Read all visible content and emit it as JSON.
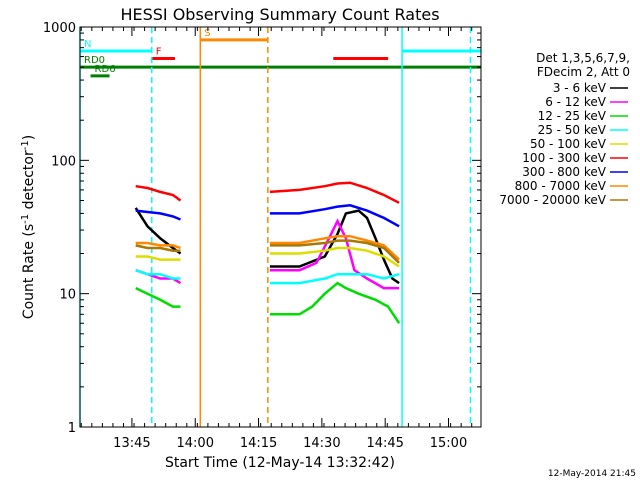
{
  "chart_data": {
    "type": "line",
    "title": "HESSI Observing Summary Count Rates",
    "xlabel": "Start Time (12-May-14 13:32:42)",
    "ylabel_main": "Count Rate (s",
    "ylabel_sup1": "-1",
    "ylabel_mid": " detector",
    "ylabel_sup2": "-1",
    "ylabel_end": ")",
    "y_scale": "log",
    "ylim": [
      1,
      1000
    ],
    "xlim_minutes": [
      0,
      95
    ],
    "x_ticks": [
      {
        "label": "13:45",
        "min": 12.3
      },
      {
        "label": "14:00",
        "min": 27.3
      },
      {
        "label": "14:15",
        "min": 42.3
      },
      {
        "label": "14:30",
        "min": 57.3
      },
      {
        "label": "14:45",
        "min": 72.3
      },
      {
        "label": "15:00",
        "min": 87.3
      }
    ],
    "y_ticks": [
      {
        "label": "1",
        "value": 1
      },
      {
        "label": "10",
        "value": 10
      },
      {
        "label": "100",
        "value": 100
      },
      {
        "label": "1000",
        "value": 1000
      }
    ],
    "legend_header": [
      "Det 1,3,5,6,7,9,",
      "FDecim 2, Att 0"
    ],
    "legend_placement": "right",
    "footer_date": "12-May-2014 21:45",
    "series": [
      {
        "name": "3 - 6 keV",
        "color": "#000000",
        "points": [
          [
            13.2,
            44
          ],
          [
            16,
            32
          ],
          [
            19,
            26
          ],
          [
            22,
            22
          ],
          [
            23.8,
            20
          ],
          [
            45,
            16
          ],
          [
            52,
            16
          ],
          [
            58,
            19
          ],
          [
            61,
            28
          ],
          [
            63,
            40
          ],
          [
            66,
            42
          ],
          [
            68,
            37
          ],
          [
            70,
            26
          ],
          [
            72,
            18
          ],
          [
            74,
            13
          ],
          [
            75.6,
            12
          ]
        ]
      },
      {
        "name": "6 - 12 keV",
        "color": "#ff00ff",
        "points": [
          [
            13.2,
            15
          ],
          [
            16,
            14
          ],
          [
            19,
            13
          ],
          [
            22,
            13
          ],
          [
            23.8,
            12
          ],
          [
            45,
            15
          ],
          [
            52,
            15
          ],
          [
            56,
            17
          ],
          [
            59,
            26
          ],
          [
            61,
            35
          ],
          [
            63,
            26
          ],
          [
            65,
            15
          ],
          [
            68,
            13
          ],
          [
            72,
            11
          ],
          [
            75.6,
            11
          ]
        ]
      },
      {
        "name": "12 - 25 keV",
        "color": "#00dd00",
        "points": [
          [
            13.2,
            11
          ],
          [
            16,
            10
          ],
          [
            19,
            9
          ],
          [
            22,
            8
          ],
          [
            23.8,
            8
          ],
          [
            45,
            7
          ],
          [
            52,
            7
          ],
          [
            55,
            8
          ],
          [
            58,
            10
          ],
          [
            61,
            12
          ],
          [
            63,
            11
          ],
          [
            66,
            10
          ],
          [
            70,
            9
          ],
          [
            73,
            8
          ],
          [
            75.6,
            6
          ]
        ]
      },
      {
        "name": "25 - 50 keV",
        "color": "#00ffff",
        "points": [
          [
            13.2,
            15
          ],
          [
            16,
            14
          ],
          [
            19,
            14
          ],
          [
            22,
            13
          ],
          [
            23.8,
            13
          ],
          [
            45,
            12
          ],
          [
            52,
            12
          ],
          [
            58,
            13
          ],
          [
            61,
            14
          ],
          [
            64,
            14
          ],
          [
            68,
            14
          ],
          [
            72,
            13
          ],
          [
            75.6,
            14
          ]
        ]
      },
      {
        "name": "50 - 100 keV",
        "color": "#dddd00",
        "points": [
          [
            13.2,
            19
          ],
          [
            16,
            19
          ],
          [
            19,
            18
          ],
          [
            22,
            18
          ],
          [
            23.8,
            18
          ],
          [
            45,
            20
          ],
          [
            52,
            20
          ],
          [
            58,
            21
          ],
          [
            61,
            22
          ],
          [
            64,
            22
          ],
          [
            68,
            21
          ],
          [
            72,
            19
          ],
          [
            75.6,
            16
          ]
        ]
      },
      {
        "name": "100 - 300 keV",
        "color": "#ff0000",
        "points": [
          [
            13.2,
            64
          ],
          [
            16,
            62
          ],
          [
            19,
            58
          ],
          [
            22,
            55
          ],
          [
            23.8,
            50
          ],
          [
            45,
            58
          ],
          [
            52,
            60
          ],
          [
            58,
            64
          ],
          [
            61,
            67
          ],
          [
            64,
            68
          ],
          [
            68,
            62
          ],
          [
            72,
            55
          ],
          [
            75.6,
            48
          ]
        ]
      },
      {
        "name": "300 - 800 keV",
        "color": "#0000ff",
        "points": [
          [
            13.2,
            42
          ],
          [
            16,
            41
          ],
          [
            19,
            40
          ],
          [
            22,
            38
          ],
          [
            23.8,
            36
          ],
          [
            45,
            40
          ],
          [
            52,
            40
          ],
          [
            58,
            43
          ],
          [
            61,
            45
          ],
          [
            64,
            46
          ],
          [
            68,
            42
          ],
          [
            72,
            37
          ],
          [
            75.6,
            32
          ]
        ]
      },
      {
        "name": "800 - 7000 keV",
        "color": "#ff8800",
        "points": [
          [
            13.2,
            24
          ],
          [
            16,
            24
          ],
          [
            19,
            23
          ],
          [
            22,
            23
          ],
          [
            23.8,
            22
          ],
          [
            45,
            24
          ],
          [
            52,
            24
          ],
          [
            58,
            26
          ],
          [
            61,
            27
          ],
          [
            64,
            27
          ],
          [
            68,
            25
          ],
          [
            72,
            23
          ],
          [
            75.6,
            18
          ]
        ]
      },
      {
        "name": "7000 - 20000 keV",
        "color": "#aa7700",
        "points": [
          [
            13.2,
            23
          ],
          [
            16,
            22
          ],
          [
            19,
            22
          ],
          [
            22,
            21
          ],
          [
            23.8,
            21
          ],
          [
            45,
            23
          ],
          [
            52,
            23
          ],
          [
            58,
            24
          ],
          [
            61,
            25
          ],
          [
            64,
            25
          ],
          [
            68,
            24
          ],
          [
            72,
            22
          ],
          [
            75.6,
            17
          ]
        ]
      }
    ],
    "flag_bars": [
      {
        "label": "RD0",
        "color": "#008000",
        "y": 500,
        "x": [
          0,
          95
        ]
      },
      {
        "label": "RD6",
        "color": "#008000",
        "y": 430,
        "x": [
          2.5,
          7
        ]
      },
      {
        "label": "F",
        "color": "#ff0000",
        "y": 580,
        "x": [
          17,
          22.5
        ]
      },
      {
        "label": "N",
        "color": "#00ffff",
        "y": 660,
        "x": [
          0,
          17
        ]
      },
      {
        "label": "",
        "color": "#00ffff",
        "y": 660,
        "x": [
          76.3,
          95
        ]
      },
      {
        "label": "S",
        "color": "#ff8800",
        "y": 800,
        "x": [
          28.5,
          44.5
        ]
      },
      {
        "label": "",
        "color": "#ff0000",
        "y": 580,
        "x": [
          60,
          73
        ]
      }
    ],
    "vlines": [
      {
        "min": 0,
        "color": "#00ffff",
        "style": "solid"
      },
      {
        "min": 17,
        "color": "#00ffff",
        "style": "dashed"
      },
      {
        "min": 28.5,
        "color": "#ff8800",
        "style": "solid"
      },
      {
        "min": 44.5,
        "color": "#ff8800",
        "style": "dashed"
      },
      {
        "min": 76.3,
        "color": "#00ffff",
        "style": "solid"
      },
      {
        "min": 92.5,
        "color": "#00ffff",
        "style": "dashed"
      }
    ]
  }
}
